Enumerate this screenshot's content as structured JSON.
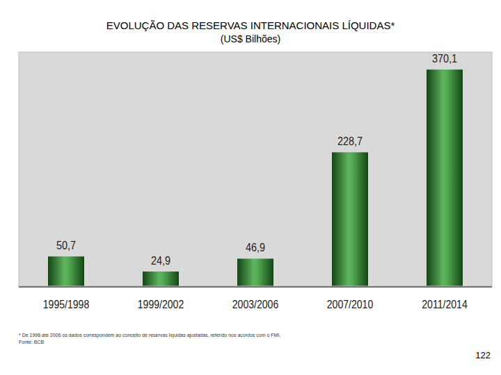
{
  "chart_data": {
    "type": "bar",
    "title": "EVOLUÇÃO DAS RESERVAS INTERNACIONAIS LÍQUIDAS*",
    "subtitle": "(US$ Bilhões)",
    "categories": [
      "1995/1998",
      "1999/2002",
      "2003/2006",
      "2007/2010",
      "2011/2014"
    ],
    "values": [
      50.7,
      24.9,
      46.9,
      228.7,
      370.1
    ],
    "value_labels": [
      "50,7",
      "24,9",
      "46,9",
      "228,7",
      "370,1"
    ],
    "color": "#2a9a2a",
    "ylim": [
      0,
      400
    ],
    "grid": false,
    "data_labels": true,
    "tick_labels": "x",
    "footnote": "* De 1998 até 2006 os dados correspondem ao conceito de reservas líquidas ajustadas, referido nos acordos com o FMI.",
    "source": "Fonte: BCB"
  },
  "page_number": "122"
}
